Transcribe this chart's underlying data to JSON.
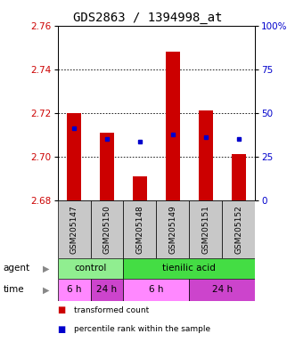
{
  "title": "GDS2863 / 1394998_at",
  "samples": [
    "GSM205147",
    "GSM205150",
    "GSM205148",
    "GSM205149",
    "GSM205151",
    "GSM205152"
  ],
  "red_bar_tops": [
    2.72,
    2.711,
    2.691,
    2.748,
    2.721,
    2.701
  ],
  "red_bar_bottom": 2.68,
  "blue_marker_y": [
    2.713,
    2.708,
    2.707,
    2.71,
    2.709,
    2.708
  ],
  "ylim_left": [
    2.68,
    2.76
  ],
  "ylim_right": [
    0,
    100
  ],
  "yticks_left": [
    2.68,
    2.7,
    2.72,
    2.74,
    2.76
  ],
  "yticks_right": [
    0,
    25,
    50,
    75,
    100
  ],
  "agent_groups": [
    {
      "label": "control",
      "start": 0,
      "end": 2,
      "color": "#90EE90"
    },
    {
      "label": "tienilic acid",
      "start": 2,
      "end": 6,
      "color": "#44DD44"
    }
  ],
  "time_groups": [
    {
      "label": "6 h",
      "start": 0,
      "end": 1,
      "color": "#FF88FF"
    },
    {
      "label": "24 h",
      "start": 1,
      "end": 2,
      "color": "#CC44CC"
    },
    {
      "label": "6 h",
      "start": 2,
      "end": 4,
      "color": "#FF88FF"
    },
    {
      "label": "24 h",
      "start": 4,
      "end": 6,
      "color": "#CC44CC"
    }
  ],
  "sample_box_color": "#C8C8C8",
  "bar_color": "#CC0000",
  "marker_color": "#0000CC",
  "bg_color": "#FFFFFF",
  "plot_bg": "#FFFFFF",
  "left_label_color": "#CC0000",
  "right_label_color": "#0000CC",
  "title_fontsize": 10,
  "tick_fontsize": 7.5,
  "sample_fontsize": 6.5,
  "label_fontsize": 7.5,
  "legend_fontsize": 6.5,
  "bar_width": 0.45
}
